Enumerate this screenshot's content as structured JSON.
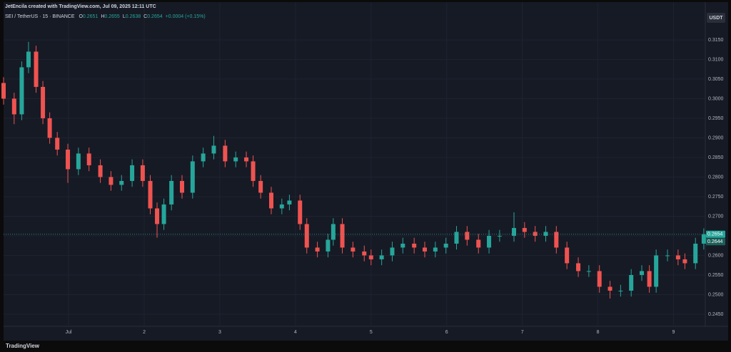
{
  "chart_data": {
    "type": "candlestick",
    "attribution": "JetEncila created with TradingView.com, Jul 09, 2025 12:11 UTC",
    "legend_symbol": "SEI / TetherUS · 15 · BINANCE",
    "legend_ohlc": [
      {
        "key": "O",
        "value": "0.2651"
      },
      {
        "key": "H",
        "value": "0.2655"
      },
      {
        "key": "L",
        "value": "0.2638"
      },
      {
        "key": "C",
        "value": "0.2654"
      }
    ],
    "legend_change": "+0.0004 (+0.15%)",
    "currency_button": "USDT",
    "footer": "TradingView",
    "up_color": "#26a69a",
    "down_color": "#ef5350",
    "grid": true,
    "xlim": [
      0.14,
      9.42
    ],
    "ylim": [
      0.2419,
      0.3219
    ],
    "xticks": [
      {
        "value": 1,
        "label": "Jul"
      },
      2,
      3,
      4,
      5,
      6,
      7,
      8,
      9
    ],
    "yticks": [
      {
        "value": 0.245,
        "label": "0.2450"
      },
      {
        "value": 0.25,
        "label": "0.2500"
      },
      {
        "value": 0.255,
        "label": "0.2550"
      },
      {
        "value": 0.26,
        "label": "0.2600"
      },
      {
        "value": 0.265,
        "label": "0.2650"
      },
      {
        "value": 0.27,
        "label": "0.2700"
      },
      {
        "value": 0.275,
        "label": "0.2750"
      },
      {
        "value": 0.28,
        "label": "0.2800"
      },
      {
        "value": 0.285,
        "label": "0.2850"
      },
      {
        "value": 0.29,
        "label": "0.2900"
      },
      {
        "value": 0.295,
        "label": "0.2950"
      },
      {
        "value": 0.3,
        "label": "0.3000"
      },
      {
        "value": 0.305,
        "label": "0.3050"
      },
      {
        "value": 0.31,
        "label": "0.3100"
      },
      {
        "value": 0.315,
        "label": "0.3150"
      }
    ],
    "price_labels": [
      {
        "value": 0.2654,
        "label": "0.2654"
      },
      {
        "value": 0.2644,
        "label": "0.2644"
      }
    ],
    "x": [
      0.14,
      0.28,
      0.38,
      0.47,
      0.57,
      0.66,
      0.75,
      0.85,
      0.99,
      1.13,
      1.27,
      1.42,
      1.56,
      1.7,
      1.84,
      1.98,
      2.08,
      2.17,
      2.26,
      2.36,
      2.5,
      2.64,
      2.78,
      2.92,
      3.07,
      3.21,
      3.35,
      3.44,
      3.54,
      3.68,
      3.82,
      3.92,
      4.06,
      4.15,
      4.29,
      4.43,
      4.5,
      4.62,
      4.76,
      4.91,
      5.0,
      5.14,
      5.28,
      5.42,
      5.57,
      5.71,
      5.85,
      5.99,
      6.13,
      6.27,
      6.42,
      6.56,
      6.7,
      6.89,
      7.03,
      7.17,
      7.31,
      7.45,
      7.59,
      7.74,
      7.88,
      8.02,
      8.16,
      8.3,
      8.44,
      8.58,
      8.68,
      8.77,
      8.92,
      9.06,
      9.15,
      9.29,
      9.4
    ],
    "open": [
      0.304,
      0.3,
      0.296,
      0.308,
      0.312,
      0.303,
      0.295,
      0.29,
      0.287,
      0.282,
      0.286,
      0.283,
      0.28,
      0.278,
      0.279,
      0.283,
      0.279,
      0.272,
      0.268,
      0.273,
      0.279,
      0.276,
      0.284,
      0.286,
      0.288,
      0.284,
      0.285,
      0.284,
      0.279,
      0.276,
      0.272,
      0.273,
      0.274,
      0.268,
      0.262,
      0.261,
      0.264,
      0.268,
      0.262,
      0.261,
      0.26,
      0.259,
      0.26,
      0.262,
      0.263,
      0.262,
      0.261,
      0.262,
      0.263,
      0.266,
      0.264,
      0.262,
      0.265,
      0.265,
      0.267,
      0.266,
      0.265,
      0.266,
      0.262,
      0.258,
      0.256,
      0.256,
      0.252,
      0.251,
      0.251,
      0.255,
      0.256,
      0.252,
      0.26,
      0.26,
      0.259,
      0.258,
      0.263
    ],
    "high": [
      0.3055,
      0.3015,
      0.3095,
      0.3145,
      0.3135,
      0.3045,
      0.2965,
      0.2915,
      0.2885,
      0.2875,
      0.2875,
      0.2845,
      0.2815,
      0.2805,
      0.2845,
      0.2845,
      0.2805,
      0.2735,
      0.2745,
      0.2805,
      0.2805,
      0.2855,
      0.2875,
      0.2905,
      0.2895,
      0.2865,
      0.2865,
      0.2855,
      0.2805,
      0.2775,
      0.2745,
      0.2755,
      0.2755,
      0.2695,
      0.2635,
      0.2655,
      0.2695,
      0.2695,
      0.2635,
      0.2625,
      0.2615,
      0.2615,
      0.2635,
      0.2645,
      0.2645,
      0.2635,
      0.2635,
      0.2645,
      0.2675,
      0.2675,
      0.2655,
      0.2665,
      0.2665,
      0.271,
      0.2685,
      0.2675,
      0.2675,
      0.2675,
      0.2635,
      0.2595,
      0.2575,
      0.2575,
      0.2535,
      0.2525,
      0.2565,
      0.2575,
      0.2575,
      0.2615,
      0.2615,
      0.2615,
      0.2605,
      0.2645,
      0.2669
    ],
    "low": [
      0.2985,
      0.2935,
      0.2945,
      0.3065,
      0.3015,
      0.2935,
      0.2885,
      0.2855,
      0.2785,
      0.2805,
      0.2815,
      0.2785,
      0.2765,
      0.2765,
      0.2775,
      0.2775,
      0.2705,
      0.2645,
      0.2665,
      0.2715,
      0.2745,
      0.2745,
      0.2825,
      0.2845,
      0.2825,
      0.2825,
      0.2825,
      0.2775,
      0.2745,
      0.2705,
      0.2705,
      0.2715,
      0.2665,
      0.2605,
      0.2595,
      0.2595,
      0.2625,
      0.2605,
      0.2595,
      0.2585,
      0.2575,
      0.2575,
      0.2585,
      0.2605,
      0.2605,
      0.2595,
      0.2595,
      0.2605,
      0.2615,
      0.2625,
      0.2605,
      0.2605,
      0.2635,
      0.2635,
      0.2645,
      0.2635,
      0.2635,
      0.2605,
      0.2565,
      0.2545,
      0.2545,
      0.2505,
      0.249,
      0.2495,
      0.2495,
      0.2535,
      0.2505,
      0.2505,
      0.2585,
      0.2575,
      0.2565,
      0.2565,
      0.2615
    ],
    "close": [
      0.3,
      0.296,
      0.308,
      0.312,
      0.303,
      0.295,
      0.29,
      0.287,
      0.282,
      0.286,
      0.283,
      0.28,
      0.278,
      0.279,
      0.283,
      0.279,
      0.272,
      0.268,
      0.273,
      0.279,
      0.276,
      0.284,
      0.286,
      0.288,
      0.284,
      0.285,
      0.284,
      0.279,
      0.276,
      0.272,
      0.273,
      0.274,
      0.268,
      0.262,
      0.261,
      0.264,
      0.268,
      0.262,
      0.261,
      0.26,
      0.259,
      0.26,
      0.262,
      0.263,
      0.262,
      0.261,
      0.262,
      0.263,
      0.266,
      0.264,
      0.262,
      0.265,
      0.265,
      0.267,
      0.266,
      0.265,
      0.266,
      0.262,
      0.258,
      0.256,
      0.256,
      0.252,
      0.251,
      0.251,
      0.255,
      0.256,
      0.252,
      0.26,
      0.26,
      0.259,
      0.258,
      0.263,
      0.2654
    ]
  }
}
